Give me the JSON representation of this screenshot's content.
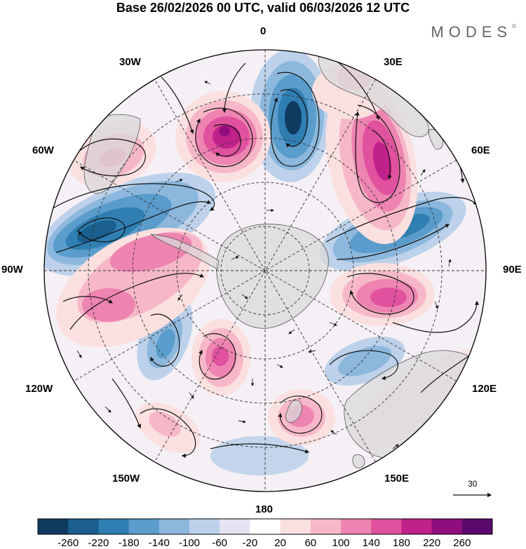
{
  "title": "Base 26/02/2026 00 UTC, valid 06/03/2026 12 UTC",
  "brand": "MODES",
  "brand_mark": "©",
  "longitude_labels": {
    "top": "0",
    "top_right": "30E",
    "right_upper": "60E",
    "right": "90E",
    "right_lower": "120E",
    "bottom_right": "150E",
    "bottom": "180",
    "bottom_left": "150W",
    "left_lower": "120W",
    "left": "90W",
    "left_upper": "60W",
    "top_left": "30W"
  },
  "vector_scale_label": "30",
  "colorbar": {
    "ticks": [
      "-260",
      "-220",
      "-180",
      "-140",
      "-100",
      "-60",
      "-20",
      "20",
      "60",
      "100",
      "140",
      "180",
      "220",
      "260"
    ],
    "colors": [
      "#0e3b5f",
      "#1a5f8e",
      "#2f7fb3",
      "#5a9ccb",
      "#8db8dd",
      "#bdd2ea",
      "#e4e4f2",
      "#ffffff",
      "#fbe0e0",
      "#f6b8c8",
      "#ee84b1",
      "#e0519e",
      "#c0218a",
      "#8f0e7d",
      "#5b0a6d"
    ]
  },
  "colors": {
    "land": "#d9d9d9",
    "coast": "#555555"
  }
}
